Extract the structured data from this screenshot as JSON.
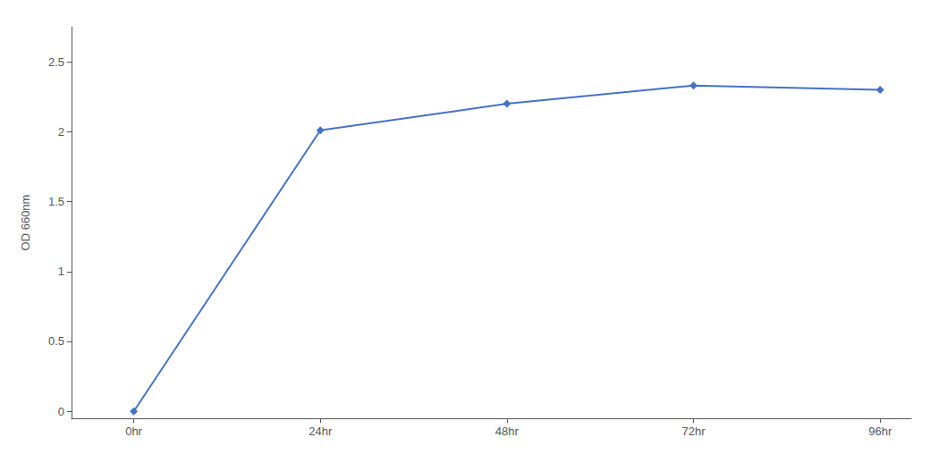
{
  "chart_data": {
    "type": "line",
    "x": [
      0,
      24,
      48,
      72,
      96
    ],
    "values": [
      0.0,
      2.01,
      2.2,
      2.33,
      2.3
    ],
    "color": "#4472C4",
    "marker": "diamond",
    "ylabel": "OD 660nm",
    "xlim": [
      -8,
      100
    ],
    "xticks": [
      {
        "value": 0,
        "label": "0hr"
      },
      {
        "value": 24,
        "label": "24hr"
      },
      {
        "value": 48,
        "label": "48hr"
      },
      {
        "value": 72,
        "label": "72hr"
      },
      {
        "value": 96,
        "label": "96hr"
      }
    ],
    "ylim": [
      -0.05,
      2.75
    ],
    "yticks": [
      0,
      0.5,
      1,
      1.5,
      2,
      2.5
    ],
    "grid": false
  }
}
